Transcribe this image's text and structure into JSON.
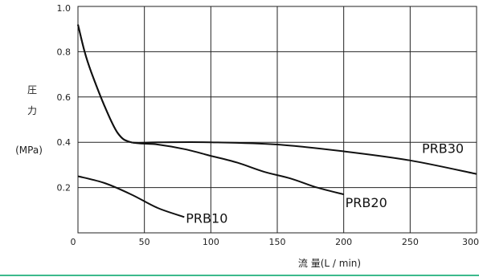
{
  "chart_data": {
    "type": "line",
    "xlabel": "流 量(L / min)",
    "ylabel_top": "圧",
    "ylabel_bottom": "力",
    "yunit": "(MPa)",
    "xlim": [
      0,
      300
    ],
    "ylim": [
      0,
      1.0
    ],
    "xticks": [
      "0",
      "50",
      "100",
      "150",
      "200",
      "250",
      "300"
    ],
    "yticks": [
      "0.2",
      "0.4",
      "0.6",
      "0.8",
      "1.0"
    ],
    "grid": true,
    "accent_color": "#3cb98b",
    "series": [
      {
        "name": "PRB10",
        "x": [
          0,
          20,
          40,
          60,
          80
        ],
        "y": [
          0.25,
          0.22,
          0.17,
          0.11,
          0.07
        ]
      },
      {
        "name": "PRB20",
        "x": [
          0,
          5,
          10,
          20,
          30,
          40,
          60,
          80,
          100,
          120,
          140,
          160,
          180,
          200
        ],
        "y": [
          0.92,
          0.8,
          0.71,
          0.56,
          0.44,
          0.4,
          0.39,
          0.37,
          0.34,
          0.31,
          0.27,
          0.24,
          0.2,
          0.17
        ]
      },
      {
        "name": "PRB30",
        "x": [
          0,
          5,
          10,
          20,
          30,
          40,
          60,
          100,
          150,
          200,
          250,
          300
        ],
        "y": [
          0.92,
          0.8,
          0.71,
          0.56,
          0.44,
          0.4,
          0.4,
          0.4,
          0.39,
          0.36,
          0.32,
          0.26
        ]
      }
    ]
  }
}
